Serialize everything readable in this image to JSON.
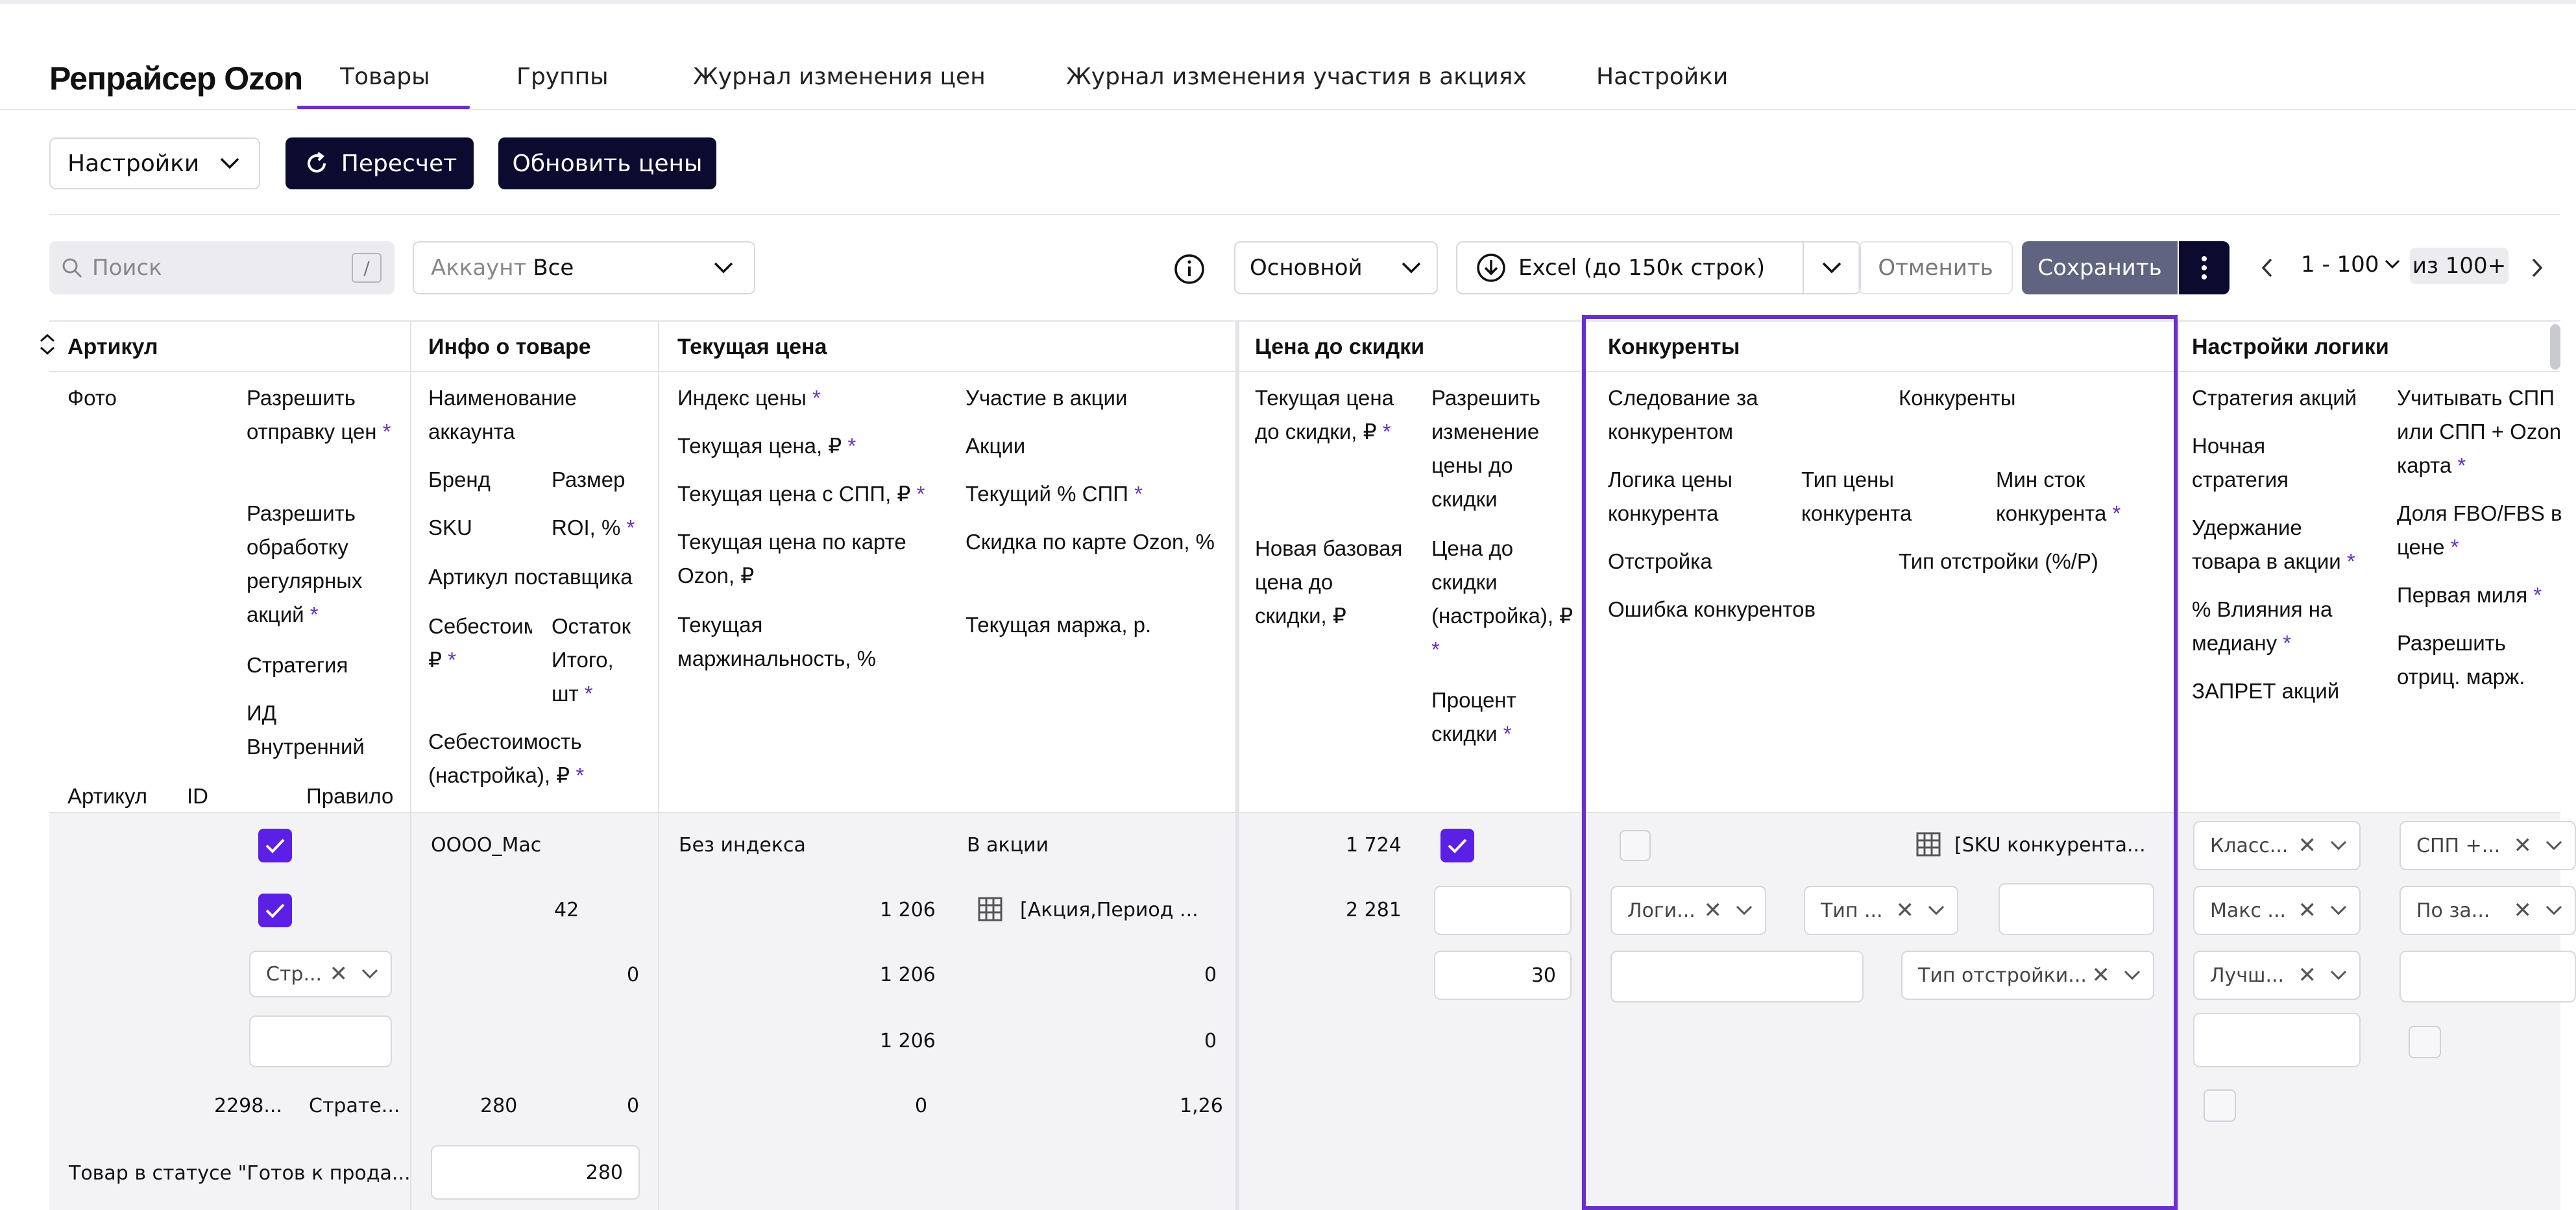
{
  "app": {
    "title": "Репрайсер Ozon"
  },
  "tabs": [
    {
      "label": "Товары"
    },
    {
      "label": "Группы"
    },
    {
      "label": "Журнал изменения цен"
    },
    {
      "label": "Журнал изменения участия в акциях"
    },
    {
      "label": "Настройки"
    }
  ],
  "toolbar": {
    "settings_label": "Настройки",
    "recalc_label": "Пересчет",
    "update_prices_label": "Обновить цены"
  },
  "filters": {
    "search_placeholder": "Поиск",
    "search_shortcut": "/",
    "account_label": "Аккаунт",
    "account_value": "Все",
    "view_value": "Основной",
    "excel_label": "Excel (до 150к строк)",
    "cancel_label": "Отменить",
    "save_label": "Сохранить",
    "page_range": "1 - 100",
    "page_total": "из 100+"
  },
  "columns": {
    "article": {
      "title": "Артикул",
      "photo": "Фото",
      "allow_send": "Разрешить отправку цен",
      "allow_regular": "Разрешить обработку регулярных акций",
      "strategy": "Стратегия",
      "internal_id": "ИД Внутренний",
      "article_lbl": "Артикул",
      "id_lbl": "ID",
      "rule_lbl": "Правило"
    },
    "product_info": {
      "title": "Инфо о товаре",
      "account_name": "Наименование аккаунта",
      "brand": "Бренд",
      "size": "Размер",
      "sku": "SKU",
      "roi": "ROI, %",
      "supplier_article": "Артикул поставщика",
      "cost": "Себестоим",
      "cost_unit": "₽",
      "stock_total": "Остаток Итого, шт",
      "cost_setting": "Себестоимость (настройка), ₽"
    },
    "current_price": {
      "title": "Текущая цена",
      "price_index": "Индекс цены",
      "current_price": "Текущая цена, ₽",
      "price_spp": "Текущая цена с СПП, ₽",
      "price_ozon_card": "Текущая цена по карте Ozon, ₽",
      "margin_pct": "Текущая маржинальность, %",
      "in_promo": "Участие в акции",
      "promos": "Акции",
      "spp_pct": "Текущий % СПП",
      "ozon_card_discount": "Скидка по карте Ozon, %",
      "margin_rub": "Текущая маржа, р."
    },
    "price_before_discount": {
      "title": "Цена до скидки",
      "current": "Текущая цена до скидки, ₽",
      "new_base": "Новая базовая цена до скидки, ₽",
      "allow_change": "Разрешить изменение цены до скидки",
      "setting": "Цена до скидки (настройка), ₽",
      "discount_pct": "Процент скидки"
    },
    "competitors": {
      "title": "Конкуренты",
      "follow": "Следование за конкурентом",
      "competitors": "Конкуренты",
      "price_logic": "Логика цены конкурента",
      "price_type": "Тип цены конкурента",
      "min_stock": "Мин сток конкурента",
      "offset": "Отстройка",
      "offset_type": "Тип отстройки (%/Р)",
      "error": "Ошибка конкурентов"
    },
    "logic_settings": {
      "title": "Настройки логики",
      "promo_strategy": "Стратегия акций",
      "night_strategy": "Ночная стратегия",
      "hold_in_promo": "Удержание товара в акции",
      "median_influence": "% Влияния на медиану",
      "promo_ban": "ЗАПРЕТ акций",
      "consider_spp": "Учитывать СПП или СПП + Ozon карта",
      "fbo_fbs_share": "Доля FBO/FBS в цене",
      "first_mile": "Первая миля",
      "allow_negative": "Разрешить отриц. марж."
    }
  },
  "row": {
    "strategy_select": "Стр...",
    "article_value": "2298...",
    "rule_value": "Страте...",
    "status_text": "Товар в статусе \"Готов к прода...",
    "account_value": "ОООО_Мас",
    "size_value": "42",
    "stock_value": "0",
    "cost_value": "280",
    "roi_value": "0",
    "cost_setting_value": "280",
    "price_index_value": "Без индекса",
    "price_value": "1 206",
    "price_spp_value": "1 206",
    "price_card_value": "1 206",
    "margin_pct_value": "0",
    "in_promo_value": "В акции",
    "promos_value": "[Акция,Период ...",
    "spp_value": "0",
    "card_discount_value": "0",
    "margin_rub_value": "1,26",
    "before_discount_value": "1 724",
    "new_base_value": "2 281",
    "discount_pct_value": "30",
    "competitors_value": "[SKU конкурента...",
    "price_logic_value": "Логи...",
    "price_type_value": "Тип ...",
    "offset_type_value": "Тип отстройки...",
    "promo_strategy_value": "Класс...",
    "night_strategy_value": "Макс ...",
    "hold_value": "Лучш...",
    "consider_spp_value": "СПП +...",
    "fbo_value": "По за..."
  },
  "colors": {
    "accent": "#6b2fc7",
    "dark": "#0b0b30",
    "checkbox": "#5b1fe6"
  }
}
